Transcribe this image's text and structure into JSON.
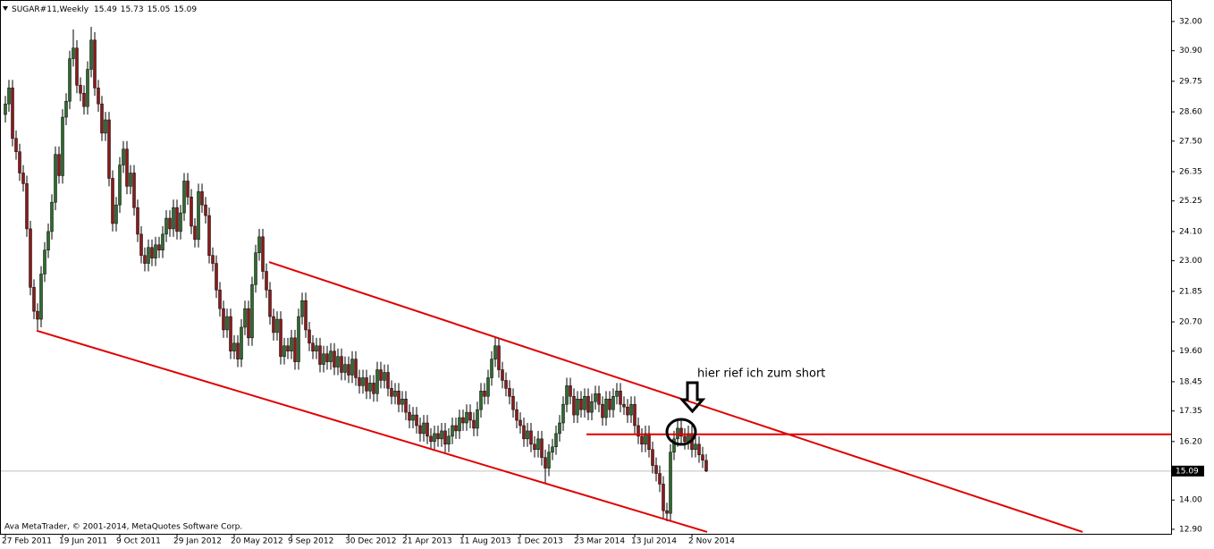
{
  "chart_data": {
    "type": "candlestick",
    "title": "SUGAR#11,Weekly",
    "footer": "Ava MetaTrader, © 2001-2014, MetaQuotes Software Corp.",
    "annotation": "hier rief ich zum short",
    "bull_color": "#2e6b2e",
    "bear_color": "#8b1a1a",
    "line_color": "#e00000",
    "grid": false,
    "ylim": [
      12.73,
      32.74
    ],
    "yticks": [
      {
        "value": 32,
        "label": "32.00"
      },
      {
        "value": 30.9,
        "label": "30.90"
      },
      {
        "value": 29.75,
        "label": "29.75"
      },
      {
        "value": 28.6,
        "label": "28.60"
      },
      {
        "value": 27.5,
        "label": "27.50"
      },
      {
        "value": 26.35,
        "label": "26.35"
      },
      {
        "value": 25.25,
        "label": "25.25"
      },
      {
        "value": 24.1,
        "label": "24.10"
      },
      {
        "value": 23,
        "label": "23.00"
      },
      {
        "value": 21.85,
        "label": "21.85"
      },
      {
        "value": 20.7,
        "label": "20.70"
      },
      {
        "value": 19.6,
        "label": "19.60"
      },
      {
        "value": 18.45,
        "label": "18.45"
      },
      {
        "value": 17.35,
        "label": "17.35"
      },
      {
        "value": 16.2,
        "label": "16.20"
      },
      {
        "value": 14,
        "label": "14.00"
      },
      {
        "value": 12.9,
        "label": "12.90"
      }
    ],
    "categories": [
      "27 Feb 2011",
      null,
      null,
      null,
      null,
      null,
      null,
      null,
      null,
      null,
      null,
      null,
      null,
      null,
      null,
      null,
      "19 Jun 2011",
      null,
      null,
      null,
      null,
      null,
      null,
      null,
      null,
      null,
      null,
      null,
      null,
      null,
      null,
      null,
      "9 Oct 2011",
      null,
      null,
      null,
      null,
      null,
      null,
      null,
      null,
      null,
      null,
      null,
      null,
      null,
      null,
      null,
      "29 Jan 2012",
      null,
      null,
      null,
      null,
      null,
      null,
      null,
      null,
      null,
      null,
      null,
      null,
      null,
      null,
      null,
      "20 May 2012",
      null,
      null,
      null,
      null,
      null,
      null,
      null,
      null,
      null,
      null,
      null,
      null,
      null,
      null,
      null,
      "9 Sep 2012",
      null,
      null,
      null,
      null,
      null,
      null,
      null,
      null,
      null,
      null,
      null,
      null,
      null,
      null,
      null,
      "30 Dec 2012",
      null,
      null,
      null,
      null,
      null,
      null,
      null,
      null,
      null,
      null,
      null,
      null,
      null,
      null,
      null,
      "21 Apr 2013",
      null,
      null,
      null,
      null,
      null,
      null,
      null,
      null,
      null,
      null,
      null,
      null,
      null,
      null,
      null,
      "11 Aug 2013",
      null,
      null,
      null,
      null,
      null,
      null,
      null,
      null,
      null,
      null,
      null,
      null,
      null,
      null,
      null,
      "1 Dec 2013",
      null,
      null,
      null,
      null,
      null,
      null,
      null,
      null,
      null,
      null,
      null,
      null,
      null,
      null,
      null,
      "23 Mar 2014",
      null,
      null,
      null,
      null,
      null,
      null,
      null,
      null,
      null,
      null,
      null,
      null,
      null,
      null,
      null,
      "13 Jul 2014",
      null,
      null,
      null,
      null,
      null,
      null,
      null,
      null,
      null,
      null,
      null,
      null,
      null,
      null,
      null,
      "2 Nov 2014",
      null,
      null,
      null,
      null
    ],
    "candles": [
      [
        28.5,
        29.2,
        28.2,
        28.9
      ],
      [
        28.9,
        29.8,
        28.6,
        29.5
      ],
      [
        29.5,
        29.8,
        27.3,
        27.6
      ],
      [
        27.6,
        27.9,
        26.8,
        27.1
      ],
      [
        27.1,
        27.4,
        26.0,
        26.3
      ],
      [
        26.3,
        26.6,
        25.6,
        25.9
      ],
      [
        25.9,
        26.2,
        23.9,
        24.2
      ],
      [
        24.2,
        24.5,
        21.7,
        22.0
      ],
      [
        22.0,
        22.3,
        20.8,
        21.1
      ],
      [
        21.1,
        21.4,
        20.4,
        20.8
      ],
      [
        20.8,
        22.8,
        20.5,
        22.5
      ],
      [
        22.5,
        23.7,
        22.2,
        23.4
      ],
      [
        23.4,
        24.4,
        23.1,
        24.1
      ],
      [
        24.1,
        25.5,
        23.8,
        25.2
      ],
      [
        25.2,
        27.3,
        24.9,
        27.0
      ],
      [
        27.0,
        27.3,
        25.9,
        26.2
      ],
      [
        26.2,
        28.7,
        25.9,
        28.4
      ],
      [
        28.4,
        29.3,
        28.1,
        29.0
      ],
      [
        29.0,
        30.9,
        28.7,
        30.6
      ],
      [
        30.6,
        31.7,
        30.3,
        31.0
      ],
      [
        31.0,
        31.3,
        29.3,
        29.6
      ],
      [
        29.6,
        29.9,
        29.0,
        29.3
      ],
      [
        29.3,
        29.6,
        28.5,
        28.8
      ],
      [
        28.8,
        30.5,
        28.5,
        30.2
      ],
      [
        30.2,
        31.8,
        29.9,
        31.3
      ],
      [
        31.3,
        31.6,
        29.2,
        29.5
      ],
      [
        29.5,
        29.8,
        28.6,
        28.9
      ],
      [
        28.9,
        29.2,
        27.5,
        27.8
      ],
      [
        27.8,
        28.6,
        27.5,
        28.3
      ],
      [
        28.3,
        28.6,
        25.8,
        26.1
      ],
      [
        26.1,
        26.4,
        24.1,
        24.4
      ],
      [
        24.4,
        25.4,
        24.1,
        25.1
      ],
      [
        25.1,
        26.9,
        24.8,
        26.6
      ],
      [
        26.6,
        27.5,
        26.3,
        27.2
      ],
      [
        27.2,
        27.5,
        25.5,
        25.8
      ],
      [
        25.8,
        26.6,
        25.5,
        26.3
      ],
      [
        26.3,
        26.6,
        24.7,
        25.0
      ],
      [
        25.0,
        25.3,
        23.7,
        24.0
      ],
      [
        24.0,
        24.3,
        22.9,
        23.2
      ],
      [
        23.2,
        23.5,
        22.6,
        22.9
      ],
      [
        22.9,
        23.8,
        22.6,
        23.5
      ],
      [
        23.5,
        23.8,
        22.8,
        23.1
      ],
      [
        23.1,
        23.9,
        22.8,
        23.6
      ],
      [
        23.6,
        23.9,
        23.1,
        23.4
      ],
      [
        23.4,
        24.3,
        23.1,
        24.0
      ],
      [
        24.0,
        24.9,
        23.7,
        24.6
      ],
      [
        24.6,
        24.9,
        23.9,
        24.2
      ],
      [
        24.2,
        25.3,
        23.9,
        25.0
      ],
      [
        25.0,
        25.3,
        23.8,
        24.1
      ],
      [
        24.1,
        25.1,
        23.8,
        24.8
      ],
      [
        24.8,
        26.3,
        24.5,
        26.0
      ],
      [
        26.0,
        26.3,
        25.1,
        25.4
      ],
      [
        25.4,
        25.7,
        24.0,
        24.3
      ],
      [
        24.3,
        24.6,
        23.5,
        23.8
      ],
      [
        23.8,
        25.9,
        23.5,
        25.6
      ],
      [
        25.6,
        25.9,
        24.8,
        25.1
      ],
      [
        25.1,
        25.4,
        24.4,
        24.7
      ],
      [
        24.7,
        25.0,
        22.9,
        23.2
      ],
      [
        23.2,
        23.5,
        22.6,
        22.9
      ],
      [
        22.9,
        23.2,
        21.6,
        21.9
      ],
      [
        21.9,
        22.2,
        20.9,
        21.2
      ],
      [
        21.2,
        21.5,
        20.1,
        20.4
      ],
      [
        20.4,
        21.2,
        20.1,
        20.9
      ],
      [
        20.9,
        21.2,
        19.3,
        19.6
      ],
      [
        19.6,
        20.2,
        19.3,
        19.9
      ],
      [
        19.9,
        20.2,
        19.0,
        19.3
      ],
      [
        19.3,
        20.8,
        19.0,
        20.5
      ],
      [
        20.5,
        21.5,
        20.2,
        21.2
      ],
      [
        21.2,
        21.5,
        19.8,
        20.1
      ],
      [
        20.1,
        22.4,
        19.8,
        22.1
      ],
      [
        22.1,
        23.6,
        21.8,
        23.3
      ],
      [
        23.3,
        24.2,
        23.0,
        23.9
      ],
      [
        23.9,
        24.2,
        22.3,
        22.6
      ],
      [
        22.6,
        22.9,
        21.6,
        21.9
      ],
      [
        21.9,
        22.2,
        20.6,
        20.9
      ],
      [
        20.9,
        21.2,
        20.0,
        20.3
      ],
      [
        20.3,
        21.1,
        20.0,
        20.8
      ],
      [
        20.8,
        21.1,
        19.1,
        19.4
      ],
      [
        19.4,
        20.1,
        19.1,
        19.8
      ],
      [
        19.8,
        20.1,
        19.3,
        19.6
      ],
      [
        19.6,
        20.4,
        19.3,
        20.1
      ],
      [
        20.1,
        20.4,
        18.9,
        19.2
      ],
      [
        19.2,
        21.2,
        18.9,
        20.9
      ],
      [
        20.9,
        21.8,
        20.6,
        21.5
      ],
      [
        21.5,
        21.8,
        20.1,
        20.4
      ],
      [
        20.4,
        20.7,
        19.6,
        19.9
      ],
      [
        19.9,
        20.2,
        19.3,
        19.6
      ],
      [
        19.6,
        20.1,
        19.3,
        19.8
      ],
      [
        19.8,
        20.1,
        18.8,
        19.1
      ],
      [
        19.1,
        19.8,
        18.8,
        19.5
      ],
      [
        19.5,
        19.8,
        18.9,
        19.2
      ],
      [
        19.2,
        19.9,
        18.9,
        19.6
      ],
      [
        19.6,
        19.9,
        18.7,
        19.0
      ],
      [
        19.0,
        19.7,
        18.7,
        19.4
      ],
      [
        19.4,
        19.7,
        18.5,
        18.8
      ],
      [
        18.8,
        19.4,
        18.5,
        19.1
      ],
      [
        19.1,
        19.4,
        18.4,
        18.7
      ],
      [
        18.7,
        19.6,
        18.4,
        19.3
      ],
      [
        19.3,
        19.6,
        18.3,
        18.6
      ],
      [
        18.6,
        18.9,
        18.0,
        18.3
      ],
      [
        18.3,
        18.9,
        18.0,
        18.6
      ],
      [
        18.6,
        18.9,
        17.8,
        18.1
      ],
      [
        18.1,
        18.7,
        17.8,
        18.4
      ],
      [
        18.4,
        18.7,
        17.7,
        18.0
      ],
      [
        18.0,
        19.2,
        17.7,
        18.9
      ],
      [
        18.9,
        19.2,
        18.2,
        18.5
      ],
      [
        18.5,
        19.1,
        18.2,
        18.8
      ],
      [
        18.8,
        19.1,
        17.9,
        18.2
      ],
      [
        18.2,
        18.5,
        17.6,
        17.9
      ],
      [
        17.9,
        18.4,
        17.6,
        18.1
      ],
      [
        18.1,
        18.4,
        17.3,
        17.6
      ],
      [
        17.6,
        18.1,
        17.3,
        17.8
      ],
      [
        17.8,
        18.1,
        17.0,
        17.3
      ],
      [
        17.3,
        17.6,
        16.7,
        17.0
      ],
      [
        17.0,
        17.5,
        16.7,
        17.2
      ],
      [
        17.2,
        17.5,
        16.5,
        16.8
      ],
      [
        16.8,
        17.1,
        16.2,
        16.5
      ],
      [
        16.5,
        17.2,
        16.2,
        16.9
      ],
      [
        16.9,
        17.2,
        16.1,
        16.4
      ],
      [
        16.4,
        16.7,
        15.9,
        16.2
      ],
      [
        16.2,
        16.8,
        15.9,
        16.5
      ],
      [
        16.5,
        16.8,
        16.0,
        16.3
      ],
      [
        16.3,
        16.9,
        16.0,
        16.6
      ],
      [
        16.6,
        16.9,
        15.8,
        16.1
      ],
      [
        16.1,
        16.7,
        15.8,
        16.4
      ],
      [
        16.4,
        17.1,
        16.1,
        16.8
      ],
      [
        16.8,
        17.1,
        16.3,
        16.6
      ],
      [
        16.6,
        17.4,
        16.3,
        17.1
      ],
      [
        17.1,
        17.4,
        16.6,
        16.9
      ],
      [
        16.9,
        17.6,
        16.6,
        17.3
      ],
      [
        17.3,
        17.6,
        16.7,
        17.0
      ],
      [
        17.0,
        17.3,
        16.4,
        16.7
      ],
      [
        16.7,
        17.7,
        16.4,
        17.4
      ],
      [
        17.4,
        18.4,
        17.1,
        18.1
      ],
      [
        18.1,
        18.4,
        17.6,
        17.9
      ],
      [
        17.9,
        18.9,
        17.6,
        18.6
      ],
      [
        18.6,
        19.6,
        18.3,
        19.3
      ],
      [
        19.3,
        20.1,
        19.0,
        19.8
      ],
      [
        19.8,
        20.1,
        18.6,
        18.9
      ],
      [
        18.9,
        19.2,
        18.2,
        18.5
      ],
      [
        18.5,
        18.8,
        17.9,
        18.2
      ],
      [
        18.2,
        18.5,
        17.6,
        17.9
      ],
      [
        17.9,
        18.2,
        17.1,
        17.4
      ],
      [
        17.4,
        17.7,
        16.7,
        17.0
      ],
      [
        17.0,
        17.3,
        16.5,
        16.8
      ],
      [
        16.8,
        17.1,
        16.0,
        16.3
      ],
      [
        16.3,
        16.9,
        16.0,
        16.6
      ],
      [
        16.6,
        16.9,
        15.8,
        16.1
      ],
      [
        16.1,
        16.4,
        15.6,
        15.9
      ],
      [
        15.9,
        16.6,
        15.6,
        16.3
      ],
      [
        16.3,
        16.6,
        15.3,
        15.6
      ],
      [
        15.6,
        15.9,
        14.6,
        15.2
      ],
      [
        15.2,
        16.1,
        14.9,
        15.8
      ],
      [
        15.8,
        16.3,
        15.5,
        16.0
      ],
      [
        16.0,
        16.8,
        15.7,
        16.5
      ],
      [
        16.5,
        17.2,
        16.2,
        16.9
      ],
      [
        16.9,
        17.9,
        16.6,
        17.6
      ],
      [
        17.6,
        18.6,
        17.3,
        18.3
      ],
      [
        18.3,
        18.6,
        17.6,
        17.9
      ],
      [
        17.9,
        18.2,
        16.9,
        17.2
      ],
      [
        17.2,
        18.1,
        16.9,
        17.8
      ],
      [
        17.8,
        18.1,
        17.1,
        17.4
      ],
      [
        17.4,
        18.2,
        17.1,
        17.9
      ],
      [
        17.9,
        18.2,
        17.0,
        17.3
      ],
      [
        17.3,
        18.0,
        17.0,
        17.7
      ],
      [
        17.7,
        18.3,
        17.4,
        18.0
      ],
      [
        18.0,
        18.3,
        17.3,
        17.6
      ],
      [
        17.6,
        17.9,
        16.8,
        17.1
      ],
      [
        17.1,
        18.1,
        16.8,
        17.8
      ],
      [
        17.8,
        18.1,
        17.1,
        17.4
      ],
      [
        17.4,
        18.2,
        17.1,
        17.9
      ],
      [
        17.9,
        18.4,
        17.6,
        18.1
      ],
      [
        18.1,
        18.4,
        17.3,
        17.6
      ],
      [
        17.6,
        17.9,
        17.2,
        17.5
      ],
      [
        17.5,
        17.8,
        16.9,
        17.2
      ],
      [
        17.2,
        17.9,
        16.9,
        17.6
      ],
      [
        17.6,
        17.9,
        16.5,
        16.8
      ],
      [
        16.8,
        17.1,
        16.1,
        16.4
      ],
      [
        16.4,
        16.7,
        15.8,
        16.1
      ],
      [
        16.1,
        16.8,
        15.8,
        16.5
      ],
      [
        16.5,
        16.8,
        15.6,
        15.9
      ],
      [
        15.9,
        16.2,
        15.0,
        15.3
      ],
      [
        15.3,
        15.6,
        14.7,
        15.0
      ],
      [
        15.0,
        15.3,
        14.3,
        14.6
      ],
      [
        14.6,
        14.9,
        13.3,
        13.6
      ],
      [
        13.6,
        13.9,
        13.2,
        13.5
      ],
      [
        13.5,
        16.1,
        13.2,
        15.8
      ],
      [
        15.8,
        16.6,
        15.5,
        16.3
      ],
      [
        16.3,
        17.0,
        16.0,
        16.7
      ],
      [
        16.7,
        17.0,
        16.1,
        16.4
      ],
      [
        16.4,
        16.7,
        15.9,
        16.2
      ],
      [
        16.2,
        16.8,
        15.9,
        16.5
      ],
      [
        16.5,
        16.8,
        15.6,
        15.9
      ],
      [
        15.9,
        16.4,
        15.6,
        16.1
      ],
      [
        16.1,
        16.4,
        15.4,
        15.7
      ],
      [
        15.7,
        16.0,
        15.2,
        15.5
      ],
      [
        15.49,
        15.73,
        15.05,
        15.09
      ]
    ],
    "trendlines": [
      {
        "x": [
          8.75,
          196.25
        ],
        "y": [
          20.37,
          12.8
        ]
      },
      {
        "x": [
          73.75,
          301.25
        ],
        "y": [
          22.95,
          12.8
        ]
      },
      {
        "x": [
          162.5,
          327.75
        ],
        "y": [
          16.47,
          16.47
        ]
      }
    ]
  }
}
